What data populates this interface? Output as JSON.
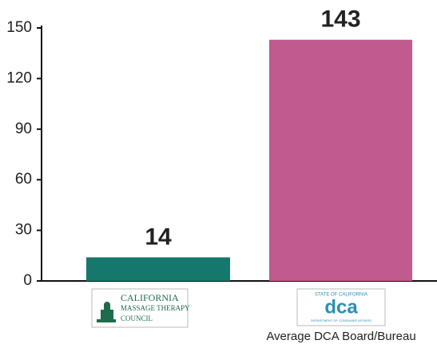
{
  "chart_data": {
    "type": "bar",
    "categories": [
      null,
      "Average DCA Board/Bureau"
    ],
    "values": [
      14,
      143
    ],
    "colors": [
      "#16776c",
      "#c05a8f"
    ],
    "ylim": [
      0,
      150
    ],
    "yticks": [
      0,
      30,
      60,
      90,
      120,
      150
    ],
    "logos": [
      {
        "lines": [
          "CALIFORNIA",
          "MASSAGE THERAPY",
          "COUNCIL"
        ],
        "color": "#1f6b4e"
      },
      {
        "lines": [
          "STATE OF CALIFORNIA",
          "dca",
          "DEPARTMENT OF CONSUMER AFFAIRS"
        ],
        "color": "#2a8fb5"
      }
    ]
  }
}
